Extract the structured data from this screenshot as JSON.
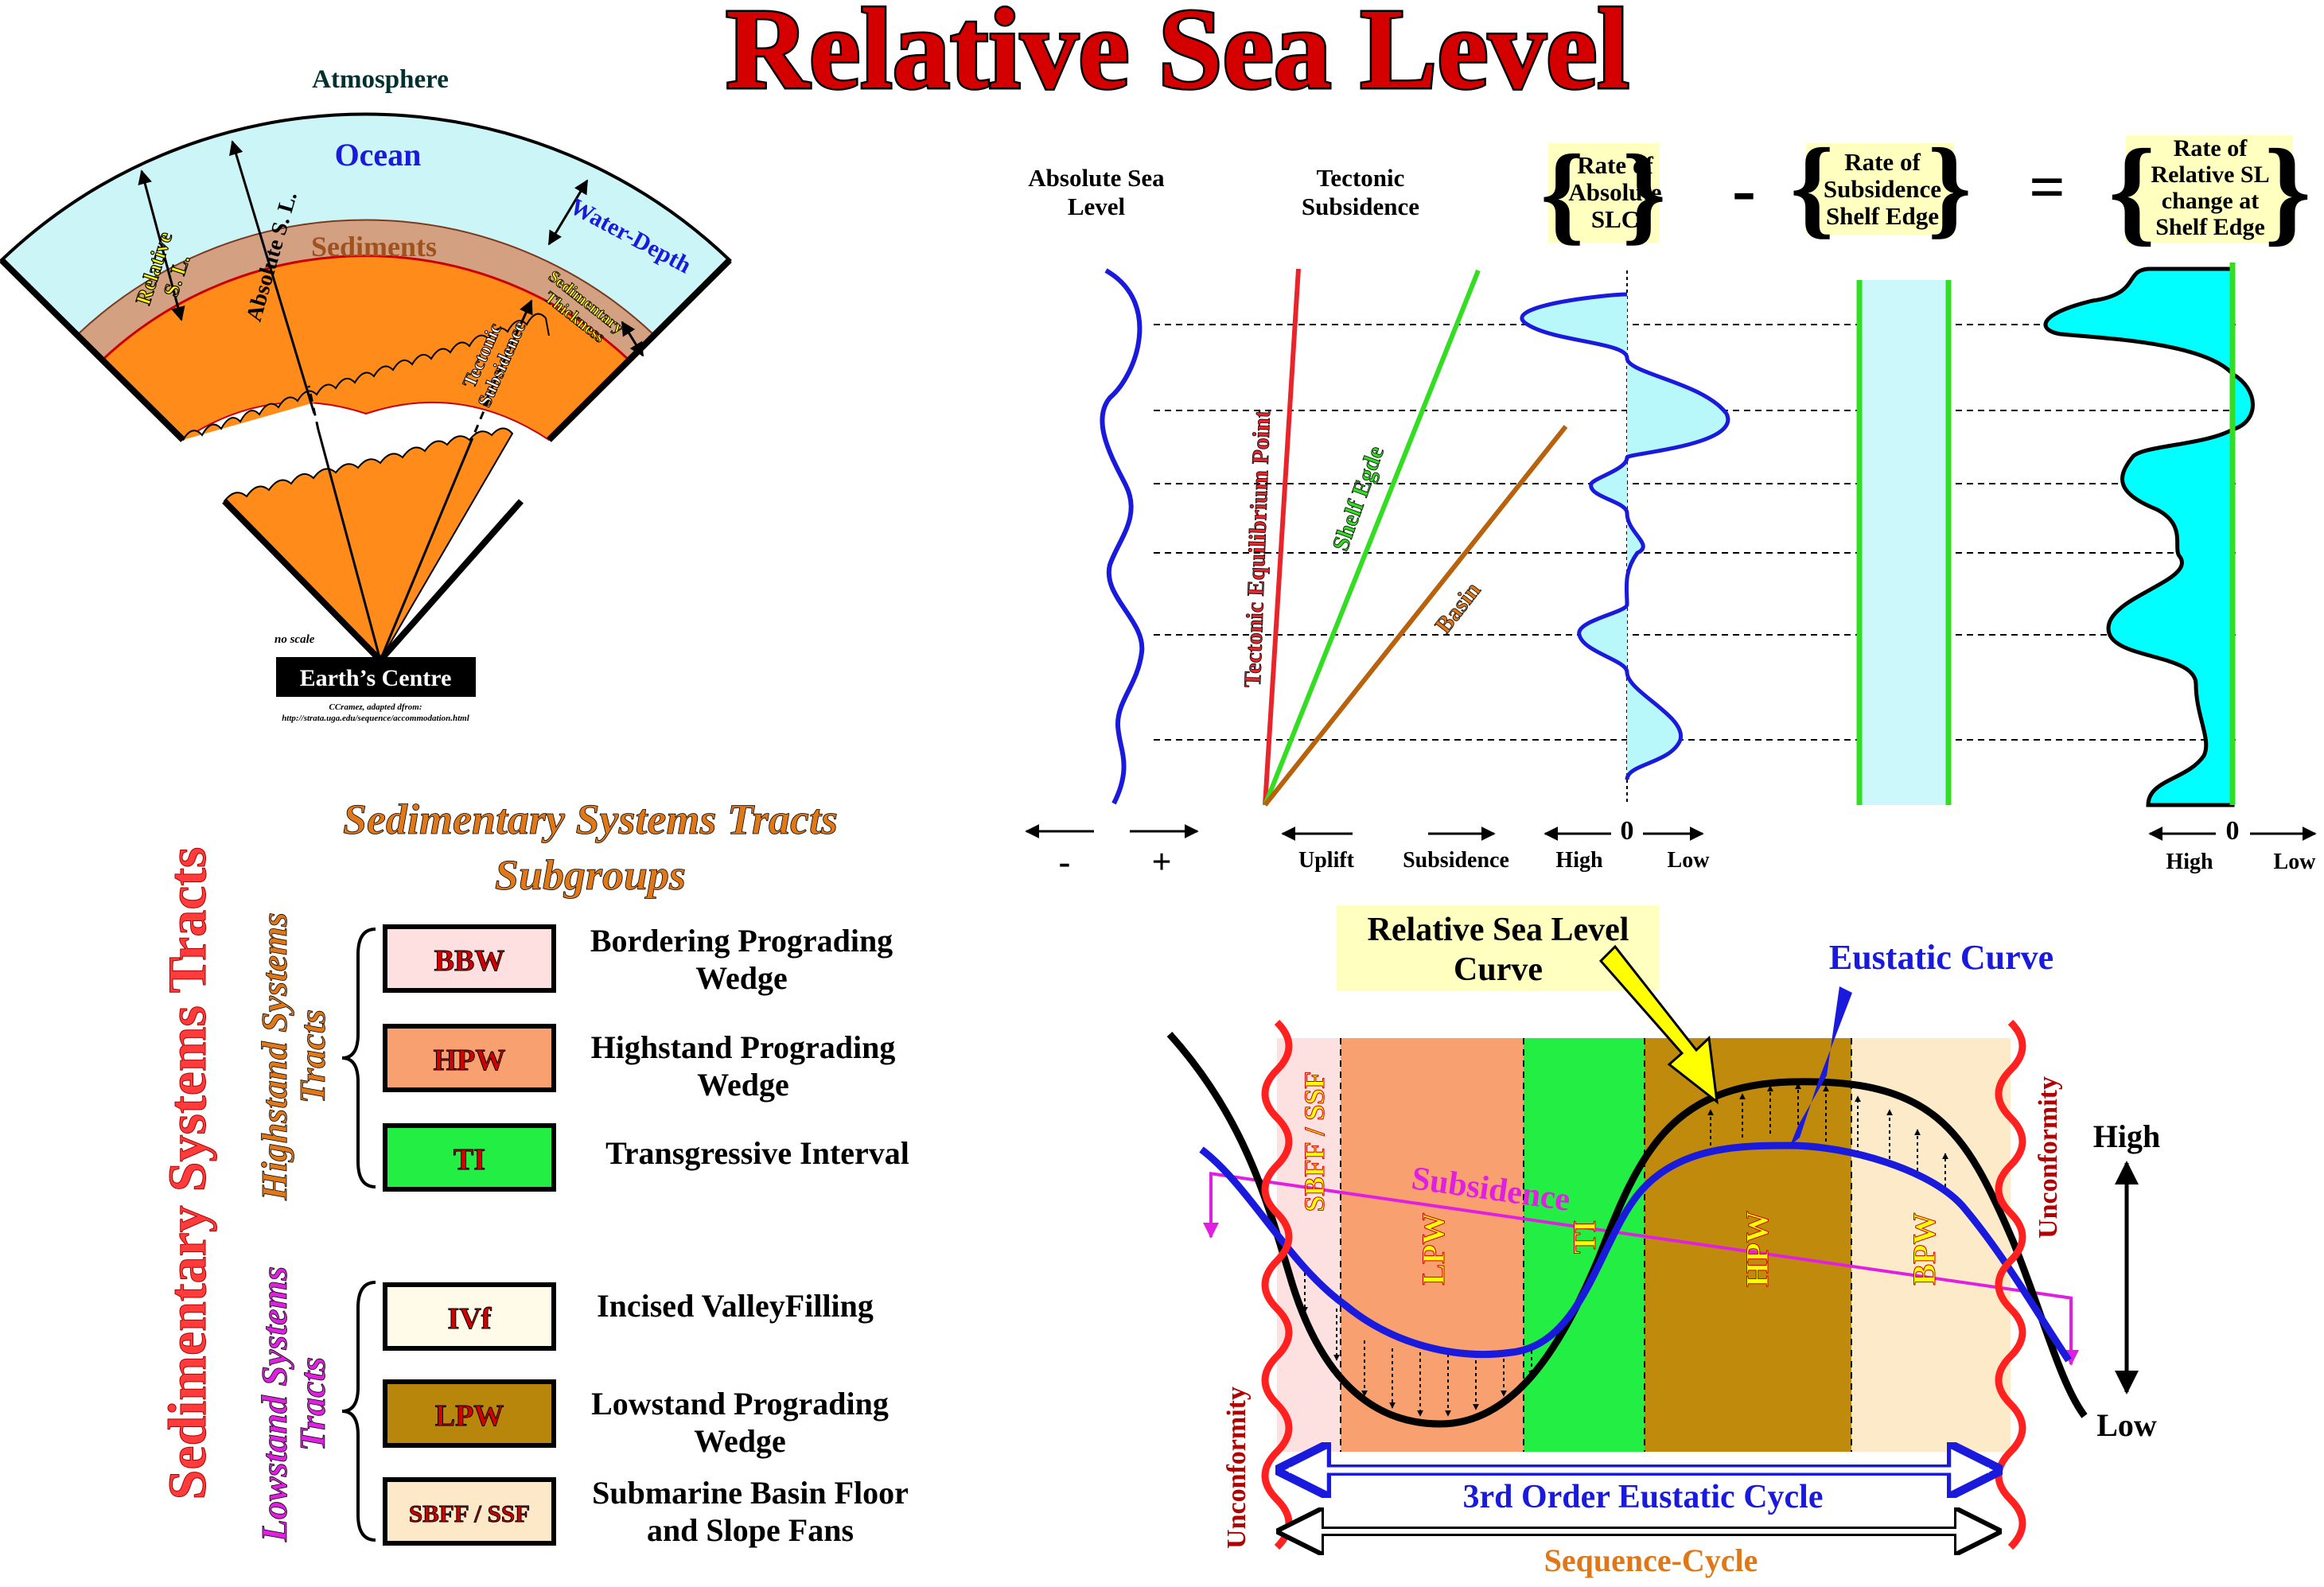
{
  "title": "Relative Sea Level",
  "earth_panel": {
    "atmosphere": "Atmosphere",
    "ocean": "Ocean",
    "sediments": "Sediments",
    "relative_sl": [
      "Relative",
      "S. L."
    ],
    "absolute_sl": "Absolute S. L.",
    "water_depth": "Water-Depth",
    "sed_thickness": [
      "Sedimentary",
      "Thickness"
    ],
    "tectonic_subsidence": [
      "Tectonic",
      "Subsidence"
    ],
    "no_scale": "no scale",
    "earth_centre": "Earth’s Centre",
    "credit": [
      "CCramez, adapted dfrom:",
      "http://strata.uga.edu/sequence/accommodation.html"
    ]
  },
  "rate_panel": {
    "col1_title": [
      "Absolute Sea",
      "Level"
    ],
    "col2_title": [
      "Tectonic",
      "Subsidence"
    ],
    "col3_title": [
      "Rate of",
      "Absolute",
      "SLC"
    ],
    "minus": "-",
    "col4_title": [
      "Rate of",
      "Subsidence",
      "Shelf Edge"
    ],
    "equals": "=",
    "col5_title": [
      "Rate of",
      "Relative SL",
      "change at",
      "Shelf Edge"
    ],
    "tectonic_eq_point": "Tectonic Equilibrium Point",
    "shelf_edge": "Shelf Egde",
    "basin": "Basin",
    "axis_minus": "-",
    "axis_plus": "+",
    "uplift": "Uplift",
    "subsidence": "Subsidence",
    "high": "High",
    "zero": "0",
    "low": "Low",
    "high2": "High",
    "zero2": "0",
    "low2": "Low",
    "colors": {
      "red": "#e8252b",
      "green": "#33dd22",
      "brown": "#b8620e",
      "blue": "#1a1adc",
      "cyan": "#00ffff"
    }
  },
  "tracts_panel": {
    "vertical_title": "Sedimentary Systems Tracts",
    "subgroups_title": [
      "Sedimentary Systems Tracts",
      "Subgroups"
    ],
    "highstand_label": [
      "Highstand Systems",
      "Tracts"
    ],
    "lowstand_label": [
      "Lowstand Systems",
      "Tracts"
    ],
    "items": [
      {
        "code": "BBW",
        "desc": [
          "Bordering Prograding",
          "Wedge"
        ],
        "color": "#ffe0e0"
      },
      {
        "code": "HPW",
        "desc": [
          "Highstand Prograding",
          "Wedge"
        ],
        "color": "#f9a070"
      },
      {
        "code": "TI",
        "desc": [
          "Transgressive Interval"
        ],
        "color": "#22ee44"
      },
      {
        "code": "IVf",
        "desc": [
          "Incised ValleyFilling"
        ],
        "color": "#fffbe8"
      },
      {
        "code": "LPW",
        "desc": [
          "Lowstand Prograding",
          "Wedge"
        ],
        "color": "#b8860b"
      },
      {
        "code": "SBFF / SSF",
        "desc": [
          "Submarine Basin Floor",
          "and Slope Fans"
        ],
        "color": "#fde8c8"
      }
    ]
  },
  "cycle_panel": {
    "rsl_curve": [
      "Relative Sea Level",
      "Curve"
    ],
    "eustatic_curve": "Eustatic Curve",
    "subsidence": "Subsidence",
    "zones": [
      "SBFF / SSF",
      "LPW",
      "TI",
      "HPW",
      "BPW"
    ],
    "unconformity_left": "Unconformity",
    "unconformity_right": "Unconformity",
    "high": "High",
    "low": "Low",
    "eustatic_cycle": "3rd Order Eustatic Cycle",
    "sequence_cycle": "Sequence-Cycle"
  }
}
